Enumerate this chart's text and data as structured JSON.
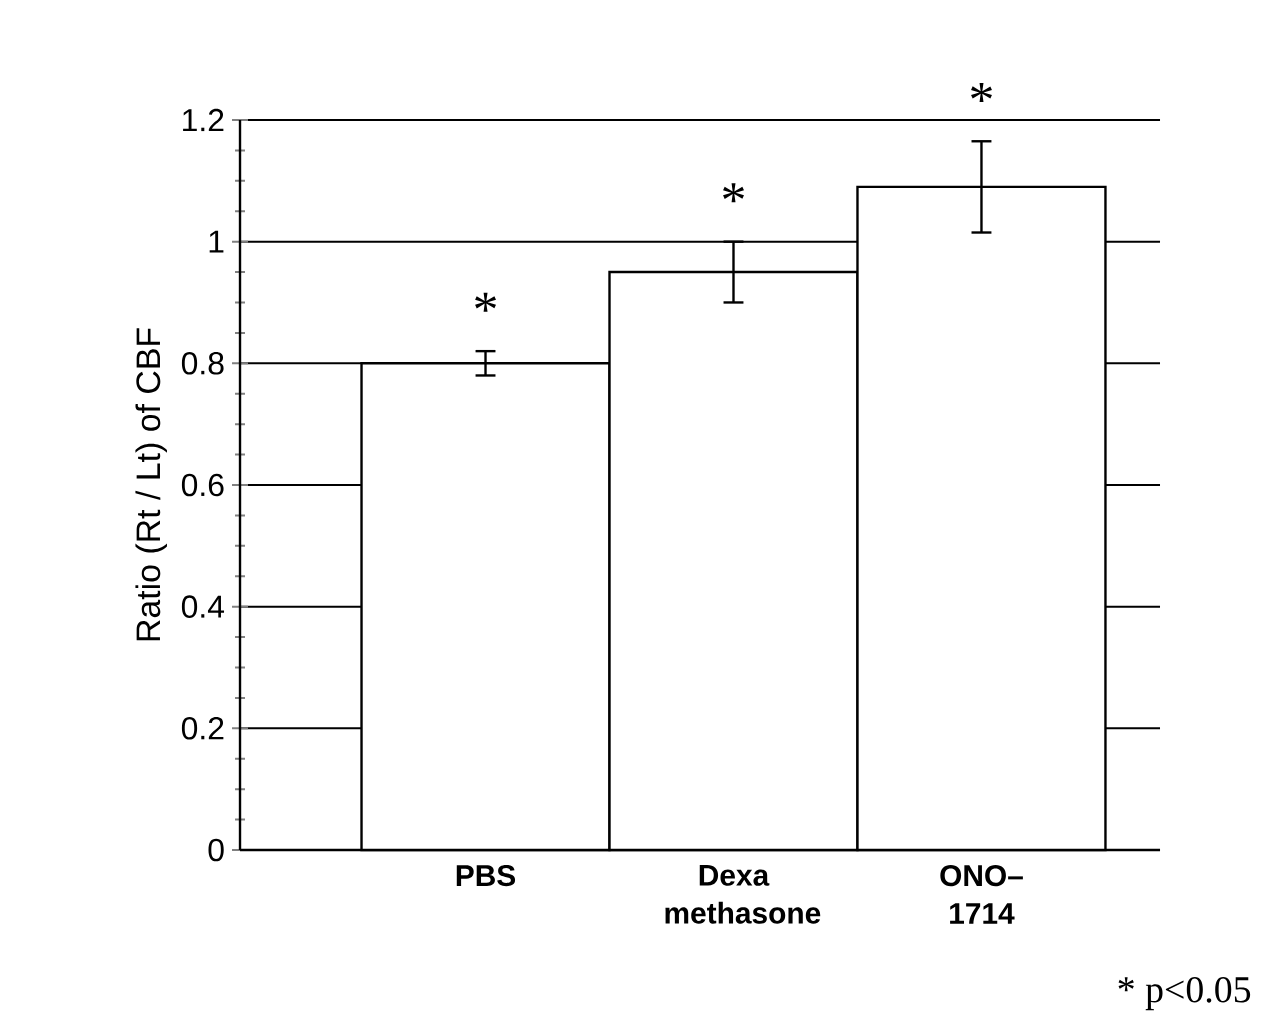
{
  "chart_data": {
    "type": "bar",
    "ylabel": "Ratio (Rt / Lt) of CBF",
    "categories": [
      "PBS",
      "Dexa methasone",
      "ONO–1714"
    ],
    "values": [
      0.8,
      0.95,
      1.09
    ],
    "errors": [
      0.02,
      0.05,
      0.075
    ],
    "colors": [
      "#ffffff",
      "#ffffff",
      "#ffffff"
    ],
    "ylim": [
      0,
      1.2
    ],
    "yticks": [
      0,
      0.2,
      0.4,
      0.6,
      0.8,
      1,
      1.2
    ],
    "grid": "y",
    "annotations": [
      "*",
      "*",
      "*",
      "* p<0.05"
    ]
  }
}
